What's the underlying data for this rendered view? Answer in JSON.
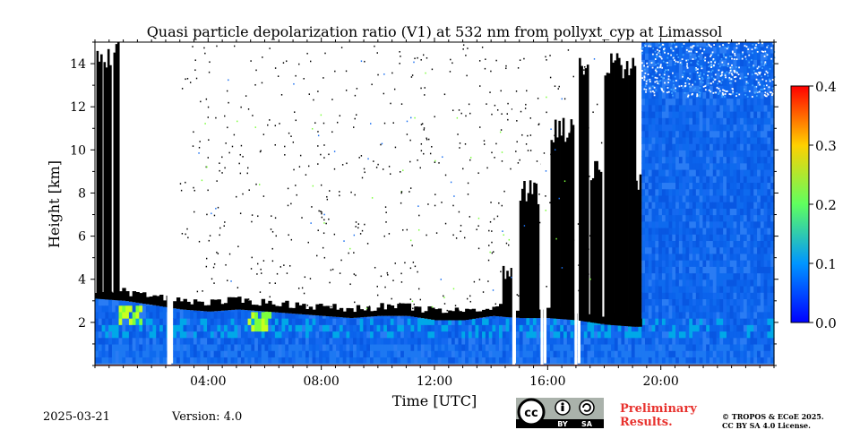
{
  "chart_data": {
    "type": "heatmap",
    "title": "Quasi particle depolarization ratio (V1) at 532 nm from pollyxt_cyp at Limassol",
    "xlabel": "Time [UTC]",
    "ylabel": "Height [km]",
    "xlim": [
      0,
      24
    ],
    "ylim": [
      0,
      15
    ],
    "xticks": [
      {
        "value": 4,
        "label": "04:00"
      },
      {
        "value": 8,
        "label": "08:00"
      },
      {
        "value": 12,
        "label": "12:00"
      },
      {
        "value": 16,
        "label": "16:00"
      },
      {
        "value": 20,
        "label": "20:00"
      }
    ],
    "yticks": [
      {
        "value": 2,
        "label": "2"
      },
      {
        "value": 4,
        "label": "4"
      },
      {
        "value": 6,
        "label": "6"
      },
      {
        "value": 8,
        "label": "8"
      },
      {
        "value": 10,
        "label": "10"
      },
      {
        "value": 12,
        "label": "12"
      },
      {
        "value": 14,
        "label": "14"
      }
    ],
    "colorbar": {
      "range": [
        0.0,
        0.4
      ],
      "ticks": [
        "0.0",
        "0.1",
        "0.2",
        "0.3",
        "0.4"
      ],
      "colormap": "jet"
    },
    "cloud_color": "#000000",
    "no_data_gaps_hours": [
      [
        2.55,
        2.7
      ],
      [
        14.75,
        14.85
      ],
      [
        15.75,
        15.85
      ],
      [
        16.95,
        17.05
      ]
    ],
    "cloud_base_km": [
      [
        0,
        3.1
      ],
      [
        1,
        3.0
      ],
      [
        2,
        2.8
      ],
      [
        3,
        2.6
      ],
      [
        4,
        2.5
      ],
      [
        5,
        2.6
      ],
      [
        6,
        2.5
      ],
      [
        7,
        2.4
      ],
      [
        8,
        2.3
      ],
      [
        9,
        2.2
      ],
      [
        10,
        2.3
      ],
      [
        11,
        2.3
      ],
      [
        12,
        2.1
      ],
      [
        13,
        2.1
      ],
      [
        14,
        2.3
      ],
      [
        15,
        2.2
      ],
      [
        16,
        2.2
      ],
      [
        17,
        2.1
      ],
      [
        18,
        1.9
      ],
      [
        19,
        1.8
      ],
      [
        19.3,
        1.8
      ]
    ],
    "high_depol_layers": [
      {
        "t0": 0.8,
        "t1": 1.6,
        "h0": 1.7,
        "h1": 2.6,
        "value": 0.2
      },
      {
        "t0": 5.3,
        "t1": 6.3,
        "h0": 1.4,
        "h1": 2.2,
        "value": 0.2
      }
    ]
  },
  "footer": {
    "date": "2025-03-21",
    "version": "Version: 4.0",
    "preliminary_line1": "Preliminary",
    "preliminary_line2": "Results.",
    "copyright_line1": "© TROPOS & ECoE 2025.",
    "copyright_line2": "CC BY SA 4.0 License.",
    "cc_label": "cc",
    "by_label": "BY",
    "sa_label": "SA"
  }
}
